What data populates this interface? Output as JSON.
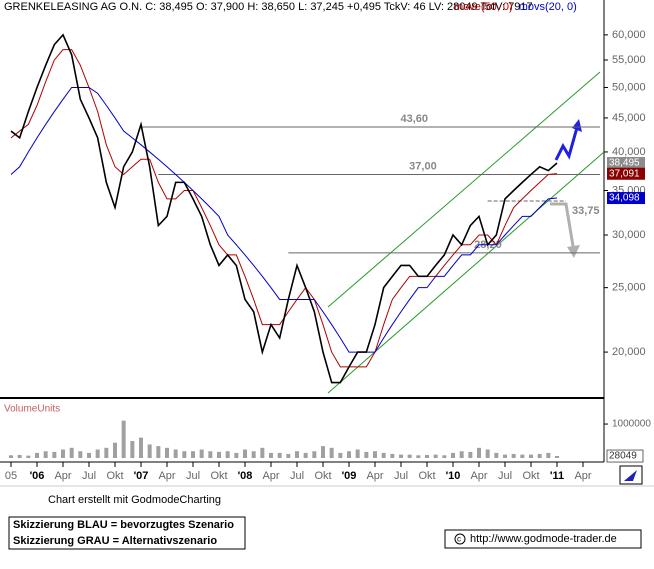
{
  "chart_data": {
    "type": "line",
    "header": "GRENKELEASING AG O.N. C: 38,495 O: 37,900 H: 38,650 L: 37,245 +0,495 TckV: 46 LV: 28049 TotV: 7917",
    "log_scale": true,
    "x": [
      "2005-10",
      "2005-11",
      "2005-12",
      "2006-01",
      "2006-02",
      "2006-03",
      "2006-04",
      "2006-05",
      "2006-06",
      "2006-07",
      "2006-08",
      "2006-09",
      "2006-10",
      "2006-11",
      "2006-12",
      "2007-01",
      "2007-02",
      "2007-03",
      "2007-04",
      "2007-05",
      "2007-06",
      "2007-07",
      "2007-08",
      "2007-09",
      "2007-10",
      "2007-11",
      "2007-12",
      "2008-01",
      "2008-02",
      "2008-03",
      "2008-04",
      "2008-05",
      "2008-06",
      "2008-07",
      "2008-08",
      "2008-09",
      "2008-10",
      "2008-11",
      "2008-12",
      "2009-01",
      "2009-02",
      "2009-03",
      "2009-04",
      "2009-05",
      "2009-06",
      "2009-07",
      "2009-08",
      "2009-09",
      "2009-10",
      "2009-11",
      "2009-12",
      "2010-01",
      "2010-02",
      "2010-03",
      "2010-04",
      "2010-05",
      "2010-06",
      "2010-07",
      "2010-08",
      "2010-09",
      "2010-10",
      "2010-11",
      "2010-12",
      "2011-01"
    ],
    "price": {
      "color": "#000000",
      "values": [
        43,
        42,
        46,
        50,
        54,
        58,
        60,
        56,
        48,
        45,
        42,
        36,
        33,
        38,
        40,
        44,
        38,
        31,
        32,
        36,
        36,
        34,
        32,
        29,
        27,
        28,
        27,
        24,
        23,
        20,
        22,
        21,
        24,
        27,
        25,
        23,
        20,
        18,
        18,
        19,
        20,
        20,
        22,
        25,
        26,
        27,
        27,
        26,
        26,
        27,
        28,
        30,
        29,
        31,
        32,
        29,
        30,
        34,
        35,
        36,
        37,
        38,
        37.5,
        38.5
      ]
    },
    "series": [
      {
        "name": "move(50, 0)",
        "color": "#b00000",
        "values": [
          42,
          43,
          44,
          47,
          51,
          55,
          57,
          57,
          54,
          50,
          46,
          41,
          38,
          37,
          38,
          39,
          39,
          36,
          34,
          34,
          35,
          35,
          33,
          31,
          29,
          28,
          28,
          26,
          24,
          22,
          22,
          22,
          23,
          24,
          25,
          24,
          22,
          20,
          19,
          19,
          19,
          19,
          20,
          22,
          24,
          25,
          26,
          26,
          26,
          26,
          27,
          28,
          29,
          29,
          30,
          30,
          29,
          31,
          33,
          34,
          35,
          36,
          37,
          37.1
        ]
      },
      {
        "name": "movs(20, 0)",
        "color": "#0000c8",
        "values": [
          37,
          38,
          40,
          42,
          44,
          46,
          48,
          50,
          50,
          50,
          49,
          47,
          45,
          43,
          42,
          41,
          40,
          39,
          38,
          37,
          36,
          35,
          34,
          33,
          32,
          30,
          29,
          28,
          27,
          26,
          25,
          24,
          24,
          24,
          24,
          24,
          23,
          22,
          21,
          20,
          20,
          20,
          20,
          21,
          22,
          23,
          24,
          25,
          25,
          26,
          26,
          27,
          28,
          28,
          29,
          29,
          29,
          30,
          31,
          32,
          32,
          33,
          34,
          34.1
        ]
      }
    ],
    "ylim": [
      17.06,
      67.7
    ],
    "yticks": [
      {
        "value": 20,
        "label": "20,000"
      },
      {
        "value": 25,
        "label": "25,000"
      },
      {
        "value": 30,
        "label": "30,000"
      },
      {
        "value": 35,
        "label": "35,000"
      },
      {
        "value": 40,
        "label": "40,000"
      },
      {
        "value": 45,
        "label": "45,000"
      },
      {
        "value": 50,
        "label": "50,000"
      },
      {
        "value": 55,
        "label": "55,000"
      },
      {
        "value": 60,
        "label": "60,000"
      }
    ],
    "xticks": [
      {
        "value": "2005-10",
        "label": "05"
      },
      {
        "value": "2006-01",
        "label": "'06"
      },
      {
        "value": "2006-04",
        "label": "Apr"
      },
      {
        "value": "2006-07",
        "label": "Jul"
      },
      {
        "value": "2006-10",
        "label": "Okt"
      },
      {
        "value": "2007-01",
        "label": "'07"
      },
      {
        "value": "2007-04",
        "label": "Apr"
      },
      {
        "value": "2007-07",
        "label": "Jul"
      },
      {
        "value": "2007-10",
        "label": "Okt"
      },
      {
        "value": "2008-01",
        "label": "'08"
      },
      {
        "value": "2008-04",
        "label": "Apr"
      },
      {
        "value": "2008-07",
        "label": "Jul"
      },
      {
        "value": "2008-10",
        "label": "Okt"
      },
      {
        "value": "2009-01",
        "label": "'09"
      },
      {
        "value": "2009-04",
        "label": "Apr"
      },
      {
        "value": "2009-07",
        "label": "Jul"
      },
      {
        "value": "2009-10",
        "label": "Okt"
      },
      {
        "value": "2010-01",
        "label": "'10"
      },
      {
        "value": "2010-04",
        "label": "Apr"
      },
      {
        "value": "2010-07",
        "label": "Jul"
      },
      {
        "value": "2010-10",
        "label": "Okt"
      },
      {
        "value": "2011-01",
        "label": "'11"
      },
      {
        "value": "2011-04",
        "label": "Apr"
      }
    ],
    "price_tags": [
      {
        "value": 38.495,
        "label": "38,495",
        "color": "#8c8c8c"
      },
      {
        "value": 37.091,
        "label": "37,091",
        "color": "#8b0000"
      },
      {
        "value": 34.098,
        "label": "34,098",
        "color": "#0000c8"
      }
    ],
    "levels": [
      {
        "value": 43.6,
        "label": "43,60",
        "from": "2007-01"
      },
      {
        "value": 37.0,
        "label": "37,00",
        "from": "2007-03"
      },
      {
        "value": 28.2,
        "label": "28,20",
        "from": "2008-06"
      },
      {
        "value": 33.75,
        "label": "33,75",
        "from": "2010-05"
      }
    ],
    "volume": {
      "label": "VolumeUnits",
      "color": "#a0a0a0",
      "values": [
        80000,
        90000,
        70000,
        150000,
        200000,
        180000,
        250000,
        300000,
        200000,
        150000,
        250000,
        300000,
        450000,
        1100000,
        500000,
        600000,
        400000,
        350000,
        300000,
        250000,
        200000,
        200000,
        250000,
        200000,
        180000,
        200000,
        150000,
        250000,
        200000,
        300000,
        150000,
        150000,
        120000,
        200000,
        150000,
        200000,
        350000,
        300000,
        150000,
        200000,
        250000,
        180000,
        200000,
        150000,
        120000,
        100000,
        100000,
        80000,
        90000,
        100000,
        80000,
        150000,
        200000,
        180000,
        300000,
        250000,
        150000,
        100000,
        120000,
        100000,
        100000,
        120000,
        150000,
        60000
      ],
      "ylim": [
        0,
        1620000
      ],
      "yticks": [
        1000000
      ],
      "last": 28049
    },
    "credit": "Chart erstellt mit GodmodeCharting",
    "notes": [
      "Skizzierung BLAU = bevorzugtes Szenario",
      "Skizzierung GRAU = Alternativszenario"
    ],
    "source": "http://www.godmode-trader.de"
  }
}
